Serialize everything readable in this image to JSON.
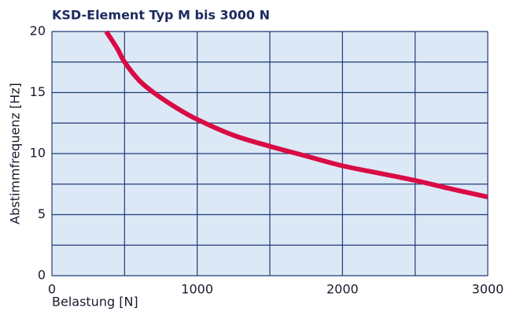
{
  "chart_data": {
    "type": "line",
    "title": "KSD-Element Typ M bis 3000 N",
    "xlabel": "Belastung [N]",
    "ylabel": "Abstimmfrequenz [Hz]",
    "x": [
      374,
      450,
      500,
      600,
      700,
      850,
      1000,
      1250,
      1500,
      1750,
      2000,
      2250,
      2500,
      2750,
      3000
    ],
    "series": [
      {
        "name": "KSD-Element Typ M",
        "color": "#d90b45",
        "values": [
          20,
          18.6,
          17.5,
          16,
          15,
          13.8,
          12.8,
          11.5,
          10.6,
          9.8,
          9.0,
          8.4,
          7.8,
          7.1,
          6.45
        ]
      }
    ],
    "xlim": [
      0,
      3000
    ],
    "ylim": [
      0,
      20
    ],
    "xticks": [
      0,
      1000,
      2000,
      3000
    ],
    "yticks": [
      0,
      5,
      10,
      15,
      20
    ],
    "xgrid": [
      0,
      500,
      1000,
      1500,
      2000,
      2500,
      3000
    ],
    "ygrid": [
      0,
      2.5,
      5,
      7.5,
      10,
      12.5,
      15,
      17.5,
      20
    ],
    "grid": true,
    "background": "#dce8f5"
  }
}
